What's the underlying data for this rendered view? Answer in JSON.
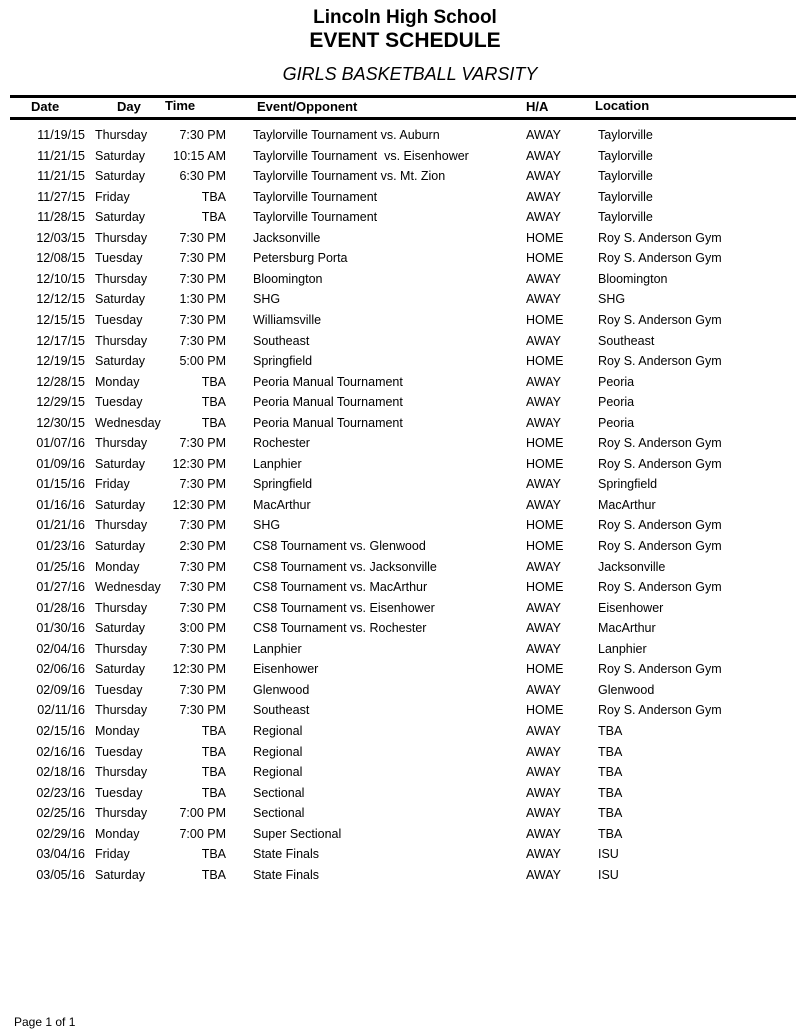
{
  "header": {
    "school": "Lincoln High School",
    "title": "EVENT SCHEDULE",
    "subtitle": "GIRLS BASKETBALL VARSITY"
  },
  "columns": {
    "date": "Date",
    "day": "Day",
    "time": "Time",
    "event": "Event/Opponent",
    "ha": "H/A",
    "location": "Location"
  },
  "rows": [
    [
      "11/19/15",
      "Thursday",
      "7:30 PM",
      "Taylorville Tournament vs. Auburn",
      "AWAY",
      "Taylorville"
    ],
    [
      "11/21/15",
      "Saturday",
      "10:15 AM",
      "Taylorville Tournament  vs. Eisenhower",
      "AWAY",
      "Taylorville"
    ],
    [
      "11/21/15",
      "Saturday",
      "6:30 PM",
      "Taylorville Tournament vs. Mt. Zion",
      "AWAY",
      "Taylorville"
    ],
    [
      "11/27/15",
      "Friday",
      "TBA",
      "Taylorville Tournament",
      "AWAY",
      "Taylorville"
    ],
    [
      "11/28/15",
      "Saturday",
      "TBA",
      "Taylorville Tournament",
      "AWAY",
      "Taylorville"
    ],
    [
      "12/03/15",
      "Thursday",
      "7:30 PM",
      "Jacksonville",
      "HOME",
      "Roy S. Anderson Gym"
    ],
    [
      "12/08/15",
      "Tuesday",
      "7:30 PM",
      "Petersburg Porta",
      "HOME",
      "Roy S. Anderson Gym"
    ],
    [
      "12/10/15",
      "Thursday",
      "7:30 PM",
      "Bloomington",
      "AWAY",
      "Bloomington"
    ],
    [
      "12/12/15",
      "Saturday",
      "1:30 PM",
      "SHG",
      "AWAY",
      "SHG"
    ],
    [
      "12/15/15",
      "Tuesday",
      "7:30 PM",
      "Williamsville",
      "HOME",
      "Roy S. Anderson Gym"
    ],
    [
      "12/17/15",
      "Thursday",
      "7:30 PM",
      "Southeast",
      "AWAY",
      "Southeast"
    ],
    [
      "12/19/15",
      "Saturday",
      "5:00 PM",
      "Springfield",
      "HOME",
      "Roy S. Anderson Gym"
    ],
    [
      "12/28/15",
      "Monday",
      "TBA",
      "Peoria Manual Tournament",
      "AWAY",
      "Peoria"
    ],
    [
      "12/29/15",
      "Tuesday",
      "TBA",
      "Peoria Manual Tournament",
      "AWAY",
      "Peoria"
    ],
    [
      "12/30/15",
      "Wednesday",
      "TBA",
      "Peoria Manual Tournament",
      "AWAY",
      "Peoria"
    ],
    [
      "01/07/16",
      "Thursday",
      "7:30 PM",
      "Rochester",
      "HOME",
      "Roy S. Anderson Gym"
    ],
    [
      "01/09/16",
      "Saturday",
      "12:30 PM",
      "Lanphier",
      "HOME",
      "Roy S. Anderson Gym"
    ],
    [
      "01/15/16",
      "Friday",
      "7:30 PM",
      "Springfield",
      "AWAY",
      "Springfield"
    ],
    [
      "01/16/16",
      "Saturday",
      "12:30 PM",
      "MacArthur",
      "AWAY",
      "MacArthur"
    ],
    [
      "01/21/16",
      "Thursday",
      "7:30 PM",
      "SHG",
      "HOME",
      "Roy S. Anderson Gym"
    ],
    [
      "01/23/16",
      "Saturday",
      "2:30 PM",
      "CS8 Tournament vs. Glenwood",
      "HOME",
      "Roy S. Anderson Gym"
    ],
    [
      "01/25/16",
      "Monday",
      "7:30 PM",
      "CS8 Tournament vs. Jacksonville",
      "AWAY",
      "Jacksonville"
    ],
    [
      "01/27/16",
      "Wednesday",
      "7:30 PM",
      "CS8 Tournament vs. MacArthur",
      "HOME",
      "Roy S. Anderson Gym"
    ],
    [
      "01/28/16",
      "Thursday",
      "7:30 PM",
      "CS8 Tournament vs. Eisenhower",
      "AWAY",
      "Eisenhower"
    ],
    [
      "01/30/16",
      "Saturday",
      "3:00 PM",
      "CS8 Tournament vs. Rochester",
      "AWAY",
      "MacArthur"
    ],
    [
      "02/04/16",
      "Thursday",
      "7:30 PM",
      "Lanphier",
      "AWAY",
      "Lanphier"
    ],
    [
      "02/06/16",
      "Saturday",
      "12:30 PM",
      "Eisenhower",
      "HOME",
      "Roy S. Anderson Gym"
    ],
    [
      "02/09/16",
      "Tuesday",
      "7:30 PM",
      "Glenwood",
      "AWAY",
      "Glenwood"
    ],
    [
      "02/11/16",
      "Thursday",
      "7:30 PM",
      "Southeast",
      "HOME",
      "Roy S. Anderson Gym"
    ],
    [
      "02/15/16",
      "Monday",
      "TBA",
      "Regional",
      "AWAY",
      "TBA"
    ],
    [
      "02/16/16",
      "Tuesday",
      "TBA",
      "Regional",
      "AWAY",
      "TBA"
    ],
    [
      "02/18/16",
      "Thursday",
      "TBA",
      "Regional",
      "AWAY",
      "TBA"
    ],
    [
      "02/23/16",
      "Tuesday",
      "TBA",
      "Sectional",
      "AWAY",
      "TBA"
    ],
    [
      "02/25/16",
      "Thursday",
      "7:00 PM",
      "Sectional",
      "AWAY",
      "TBA"
    ],
    [
      "02/29/16",
      "Monday",
      "7:00 PM",
      "Super Sectional",
      "AWAY",
      "TBA"
    ],
    [
      "03/04/16",
      "Friday",
      "TBA",
      "State Finals",
      "AWAY",
      "ISU"
    ],
    [
      "03/05/16",
      "Saturday",
      "TBA",
      "State Finals",
      "AWAY",
      "ISU"
    ]
  ],
  "footer": {
    "page": "Page 1 of 1"
  }
}
